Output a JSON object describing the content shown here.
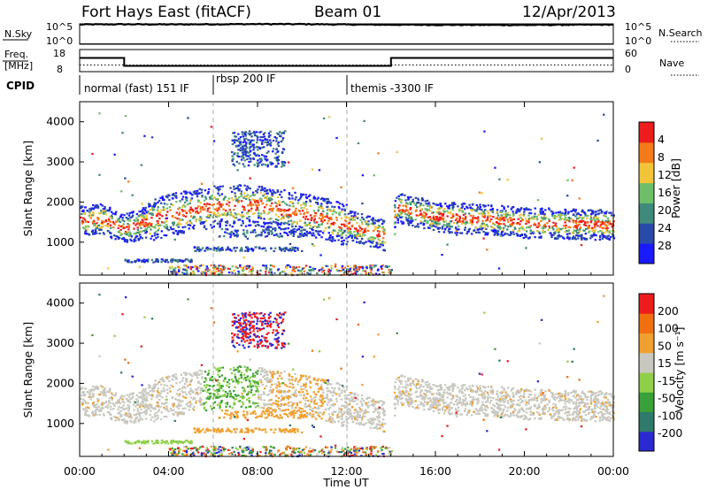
{
  "header": {
    "station": "Fort Hays East (fitACF)",
    "beam": "Beam 01",
    "date": "12/Apr/2013"
  },
  "chart_data": [
    {
      "type": "line",
      "title": "",
      "ylabel_left": "N.Sky",
      "ylabel_right": "N.Search",
      "left_ticks": [
        "10^5",
        "10^0"
      ],
      "right_ticks": [
        "10^5",
        "10^0"
      ],
      "x": [
        0,
        2,
        4,
        6,
        8,
        10,
        12,
        14,
        16,
        18,
        20,
        22,
        24
      ],
      "series": [
        {
          "name": "N.Sky",
          "values": [
            72000,
            80000,
            74000,
            82000,
            90000,
            88000,
            70000,
            62000,
            58000,
            55000,
            52000,
            60000,
            64000
          ]
        },
        {
          "name": "N.Search",
          "values": [
            1.2,
            1.2,
            1.2,
            1.2,
            1.2,
            1.2,
            1.2,
            1.2,
            1.2,
            1.2,
            1.2,
            1.2,
            1.2
          ]
        }
      ]
    },
    {
      "type": "line",
      "ylabel_left": "Freq. [MHz]",
      "ylabel_right": "Nave",
      "left_ticks": [
        "18",
        "8"
      ],
      "right_ticks": [
        "60",
        "0"
      ],
      "series": [
        {
          "name": "Freq.",
          "x": [
            0,
            2,
            2,
            14,
            14,
            24
          ],
          "values": [
            14.2,
            14.2,
            10.6,
            10.6,
            14.2,
            14.2
          ]
        },
        {
          "name": "Nave",
          "x": [
            0,
            24
          ],
          "values": [
            18,
            18
          ]
        }
      ]
    },
    {
      "type": "table",
      "label": "CPID",
      "segments": [
        {
          "start": 0,
          "end": 6,
          "text": "normal (fast) 151 IF"
        },
        {
          "start": 6,
          "end": 12,
          "text": "rbsp 200 IF"
        },
        {
          "start": 12,
          "end": 24,
          "text": "themis -3300 IF"
        }
      ]
    },
    {
      "type": "heatmap",
      "ylabel": "Slant Range [km]",
      "yticks": [
        "1000",
        "2000",
        "3000",
        "4000"
      ],
      "ylim": [
        180,
        4500
      ],
      "colorbar_label": "Power [dB]",
      "colorbar_ticks": [
        "4",
        "8",
        "12",
        "16",
        "20",
        "24",
        "28"
      ],
      "colorbar_colors": [
        "#1a1aff",
        "#2a4aa8",
        "#3f8a7a",
        "#6fbf6a",
        "#f2c43a",
        "#f47a1a",
        "#ee1d1d"
      ],
      "band_center_km": [
        1550,
        1600,
        1350,
        1700,
        1900,
        1950,
        1600,
        1150,
        1900,
        1650,
        1600,
        1500,
        1450
      ],
      "band_times_hr": [
        0,
        1,
        2,
        4,
        6,
        8,
        11,
        13.9,
        14.2,
        16,
        18,
        20,
        24
      ]
    },
    {
      "type": "heatmap",
      "ylabel": "Slant Range [km]",
      "yticks": [
        "1000",
        "2000",
        "3000",
        "4000"
      ],
      "ylim": [
        180,
        4500
      ],
      "colorbar_label": "Velocity [m s⁻¹]",
      "colorbar_ticks": [
        "200",
        "100",
        "50",
        "15",
        "-15",
        "-50",
        "-100",
        "-200"
      ],
      "colorbar_colors": [
        "#2a2ad0",
        "#2f7a6a",
        "#3aa03a",
        "#8fd04a",
        "#c8c8c0",
        "#f0a030",
        "#f07010",
        "#ee1d1d"
      ]
    }
  ],
  "xaxis": {
    "label": "Time UT",
    "ticks": [
      "00:00",
      "04:00",
      "08:00",
      "12:00",
      "16:00",
      "20:00",
      "00:00"
    ]
  }
}
